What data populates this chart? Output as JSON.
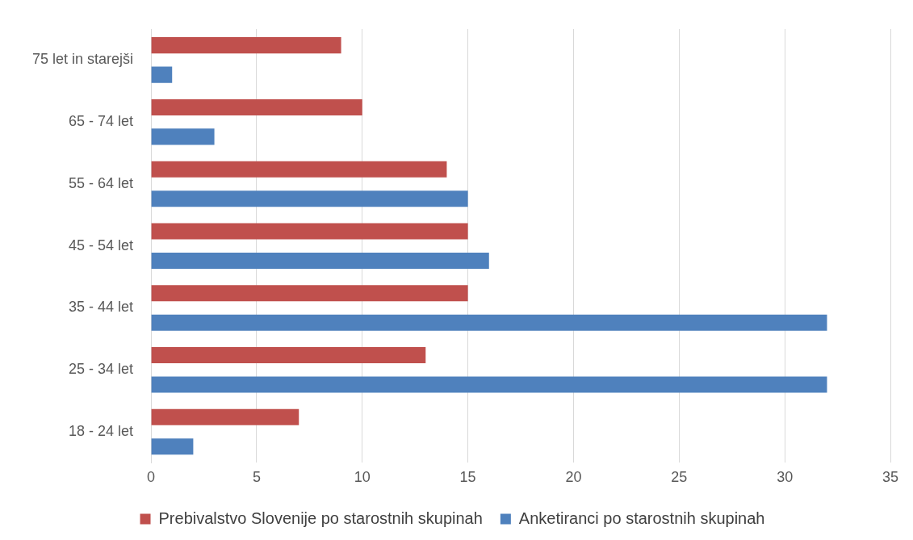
{
  "chart_data": {
    "type": "bar",
    "orientation": "horizontal",
    "categories": [
      "75 let in starejši",
      "65 - 74 let",
      "55 - 64 let",
      "45 - 54 let",
      "35 - 44 let",
      "25 - 34 let",
      "18 - 24 let"
    ],
    "series": [
      {
        "name": "Prebivalstvo Slovenije po starostnih skupinah",
        "color": "#c0504d",
        "values": [
          9,
          10,
          14,
          15,
          15,
          13,
          7
        ]
      },
      {
        "name": "Anketiranci po starostnih skupinah",
        "color": "#4f81bd",
        "values": [
          1,
          3,
          15,
          16,
          32,
          32,
          2
        ]
      }
    ],
    "xlim": [
      0,
      35
    ],
    "xticks": [
      0,
      5,
      10,
      15,
      20,
      25,
      30,
      35
    ],
    "grid": "x",
    "legend": "bottom"
  }
}
